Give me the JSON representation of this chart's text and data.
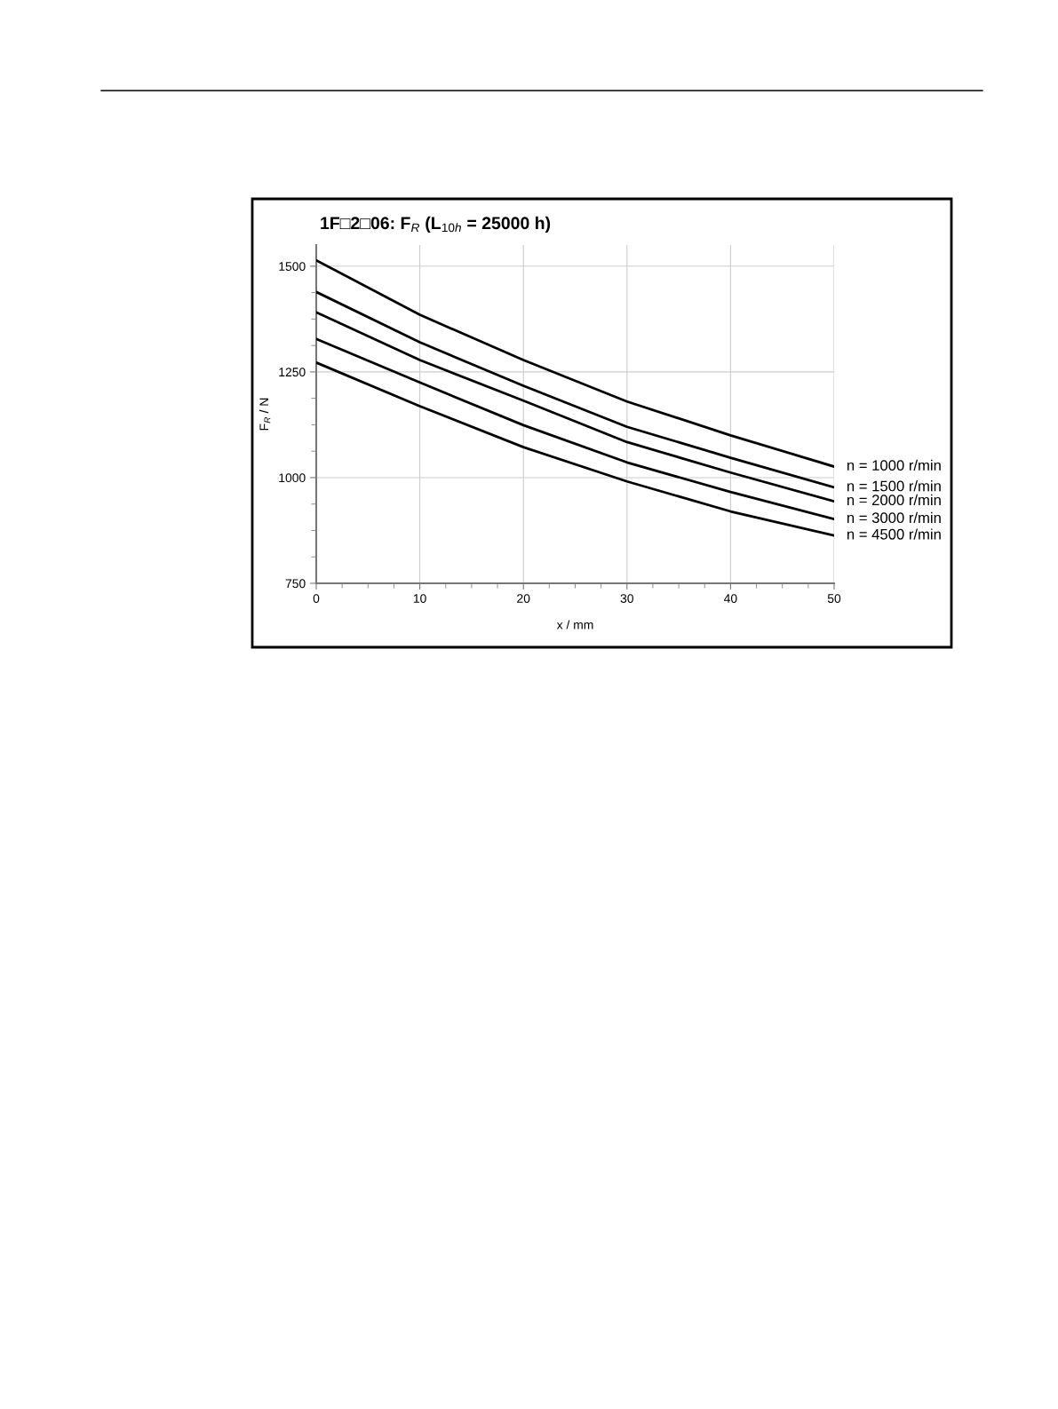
{
  "chart_data": {
    "type": "line",
    "title": "1F□2□06: F$_{R}$ (L$_{10h}$ = 25000 h)",
    "xlabel": "x / mm",
    "ylabel": "F$_{R}$ / N",
    "x": [
      0,
      10,
      20,
      30,
      40,
      50
    ],
    "series": [
      {
        "name": "n = 1000 r/min",
        "color": "#000000",
        "values": [
          1514,
          1385,
          1278,
          1180,
          1100,
          1026
        ]
      },
      {
        "name": "n = 1500 r/min",
        "color": "#000000",
        "values": [
          1439,
          1320,
          1217,
          1120,
          1047,
          977
        ]
      },
      {
        "name": "n = 2000 r/min",
        "color": "#000000",
        "values": [
          1391,
          1278,
          1182,
          1084,
          1012,
          944
        ]
      },
      {
        "name": "n = 3000 r/min",
        "color": "#000000",
        "values": [
          1328,
          1225,
          1124,
          1036,
          966,
          902
        ]
      },
      {
        "name": "n = 4500 r/min",
        "color": "#000000",
        "values": [
          1272,
          1169,
          1072,
          991,
          920,
          863
        ]
      }
    ],
    "xlim": [
      0,
      50
    ],
    "xticks": [
      0,
      10,
      20,
      30,
      40,
      50
    ],
    "ylim": [
      750,
      1550
    ],
    "yticks": [
      750,
      1000,
      1250,
      1500
    ],
    "grid": true,
    "legend": false,
    "marker": "none",
    "line_style": "solid"
  }
}
